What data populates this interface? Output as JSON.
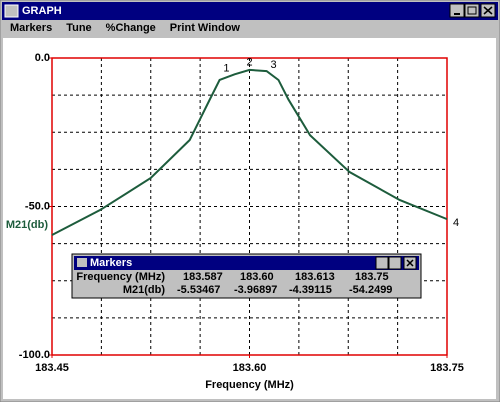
{
  "window": {
    "title": "GRAPH",
    "menu": [
      "Markers",
      "Tune",
      "%Change",
      "Print Window"
    ]
  },
  "chart_data": {
    "type": "line",
    "x_label": "Frequency (MHz)",
    "y_label": "M21(db)",
    "x": [
      183.45,
      183.4865,
      183.525,
      183.5546,
      183.5697,
      183.5773,
      183.5887,
      183.6,
      183.613,
      183.622,
      183.6296,
      183.646,
      183.676,
      183.714,
      183.75
    ],
    "values": [
      -59.6,
      -51.2,
      -40.4,
      -27.6,
      -14.1,
      -7.4,
      -5.5,
      -4.0,
      -4.4,
      -7.4,
      -14.0,
      -26.0,
      -38.4,
      -47.8,
      -54.25
    ],
    "color": "#1d5c3c",
    "xlim": [
      183.45,
      183.75
    ],
    "ylim": [
      -100,
      0
    ],
    "xticks": [
      {
        "value": 183.45,
        "label": "183.45"
      },
      {
        "value": 183.6,
        "label": "183.60"
      },
      {
        "value": 183.75,
        "label": "183.75"
      }
    ],
    "yticks": [
      {
        "value": 0,
        "label": "0.0"
      },
      {
        "value": -50,
        "label": "-50.0"
      },
      {
        "value": -100,
        "label": "-100.0"
      }
    ],
    "xgrid": [
      183.4875,
      183.525,
      183.5625,
      183.6,
      183.6375,
      183.675,
      183.7125
    ],
    "ygrid": [
      -12.5,
      -25,
      -37.5,
      -50,
      -62.5,
      -75,
      -87.5
    ],
    "markers": [
      {
        "label": "1",
        "x": 183.587,
        "y": -5.53467
      },
      {
        "label": "2",
        "x": {
          "value": 183.6,
          "label": "183.60"
        },
        "y": -3.96897
      },
      {
        "label": "3",
        "x": 183.613,
        "y": -4.39115
      },
      {
        "label": "4",
        "x": 183.75,
        "y": -54.2499
      }
    ]
  },
  "markers_dialog": {
    "title": "Markers",
    "row_labels": [
      "Frequency (MHz)",
      "M21(db)"
    ]
  }
}
